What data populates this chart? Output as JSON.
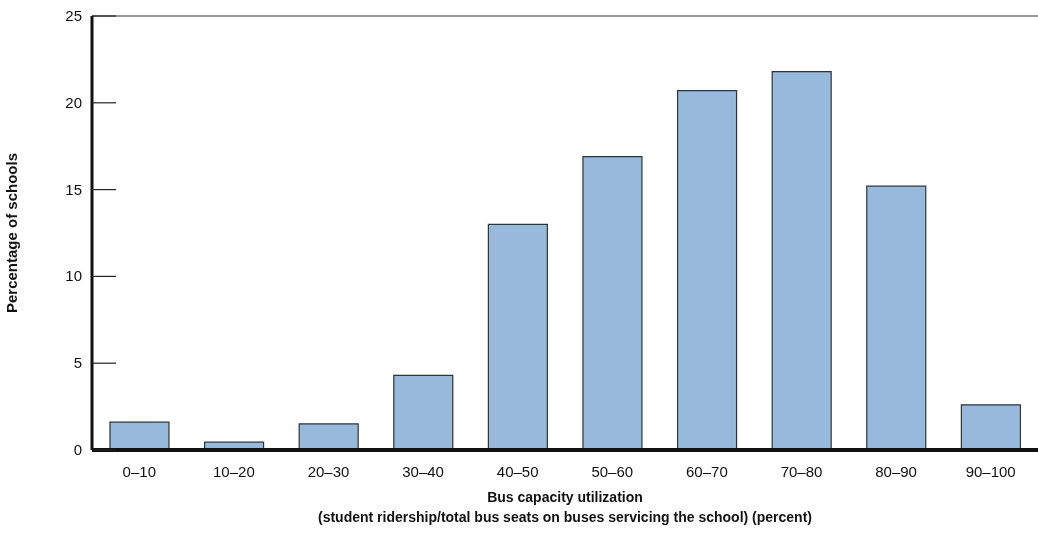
{
  "chart_data": {
    "type": "bar",
    "xlabel": "Bus capacity utilization\n(student ridership/total bus seats on buses servicing the school) (percent)",
    "ylabel": "Percentage of schools",
    "categories": [
      "0–10",
      "10–20",
      "20–30",
      "30–40",
      "40–50",
      "50–60",
      "60–70",
      "70–80",
      "80–90",
      "90–100"
    ],
    "values": [
      1.6,
      0.45,
      1.5,
      4.3,
      13.0,
      16.9,
      20.7,
      21.8,
      15.2,
      2.6
    ],
    "color": "#97b9dc",
    "ylim": [
      0,
      25
    ],
    "yticks": [
      0,
      5,
      10,
      15,
      20,
      25
    ],
    "grid": false,
    "legend": false
  }
}
